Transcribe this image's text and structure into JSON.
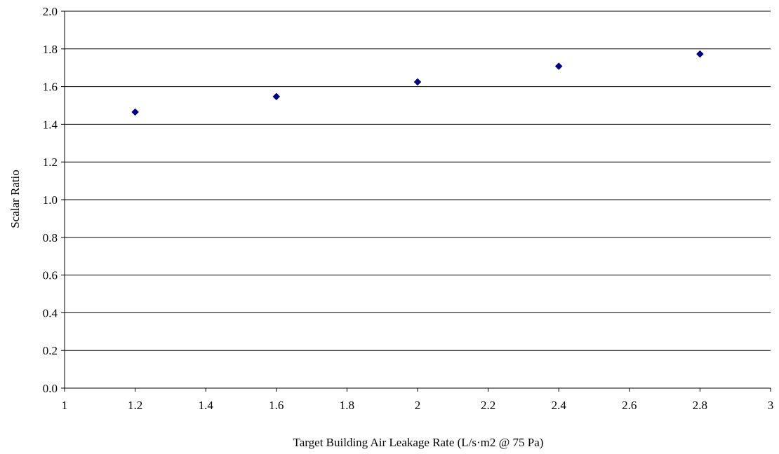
{
  "chart_data": {
    "type": "scatter",
    "title": "",
    "xlabel": "Target Building Air Leakage Rate (L/s·m2 @ 75 Pa)",
    "ylabel": "Scalar Ratio",
    "xlim": [
      1,
      3
    ],
    "ylim": [
      0,
      2
    ],
    "grid": {
      "y_major": true,
      "x_major": false
    },
    "legend": "none",
    "x_ticks": [
      {
        "value": 1,
        "label": "1"
      },
      {
        "value": 1.2,
        "label": "1.2"
      },
      {
        "value": 1.4,
        "label": "1.4"
      },
      {
        "value": 1.6,
        "label": "1.6"
      },
      {
        "value": 1.8,
        "label": "1.8"
      },
      {
        "value": 2,
        "label": "2"
      },
      {
        "value": 2.2,
        "label": "2.2"
      },
      {
        "value": 2.4,
        "label": "2.4"
      },
      {
        "value": 2.6,
        "label": "2.6"
      },
      {
        "value": 2.8,
        "label": "2.8"
      },
      {
        "value": 3,
        "label": "3"
      }
    ],
    "y_ticks": [
      {
        "value": 0,
        "label": "0.0"
      },
      {
        "value": 0.2,
        "label": "0.2"
      },
      {
        "value": 0.4,
        "label": "0.4"
      },
      {
        "value": 0.6,
        "label": "0.6"
      },
      {
        "value": 0.8,
        "label": "0.8"
      },
      {
        "value": 1.0,
        "label": "1.0"
      },
      {
        "value": 1.2,
        "label": "1.2"
      },
      {
        "value": 1.4,
        "label": "1.4"
      },
      {
        "value": 1.6,
        "label": "1.6"
      },
      {
        "value": 1.8,
        "label": "1.8"
      },
      {
        "value": 2.0,
        "label": "2.0"
      }
    ],
    "series": [
      {
        "marker": "diamond",
        "color": "#000080",
        "points": [
          {
            "x": 1.2,
            "y": 1.465
          },
          {
            "x": 1.6,
            "y": 1.547
          },
          {
            "x": 2.0,
            "y": 1.625
          },
          {
            "x": 2.4,
            "y": 1.708
          },
          {
            "x": 2.8,
            "y": 1.773
          }
        ]
      }
    ]
  }
}
